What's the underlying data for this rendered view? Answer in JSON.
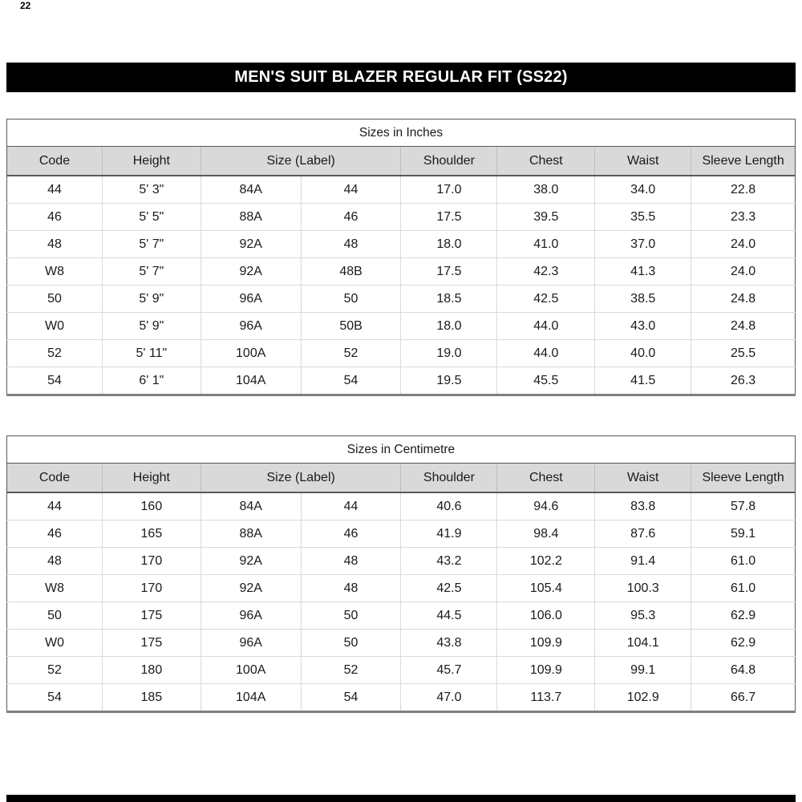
{
  "page": {
    "corner_mark": "22",
    "title_bar": "MEN'S SUIT BLAZER REGULAR FIT (SS22)"
  },
  "colors": {
    "title_bar_bg": "#000000",
    "title_bar_text": "#ffffff",
    "header_row_bg": "#d9d9d9",
    "grid_line": "#d9d9d9",
    "table_border": "#595959",
    "bottom_bar_bg": "#000000"
  },
  "column_widths_percent": [
    12.1,
    12.5,
    12.7,
    12.7,
    12.2,
    12.4,
    12.2,
    13.2
  ],
  "tables": [
    {
      "caption": "Sizes in Inches",
      "headers": [
        "Code",
        "Height",
        "Size (Label)",
        "Shoulder",
        "Chest",
        "Waist",
        "Sleeve Length"
      ],
      "header_spans": [
        1,
        1,
        2,
        1,
        1,
        1,
        1
      ],
      "rows": [
        [
          "44",
          "5' 3\"",
          "84A",
          "44",
          "17.0",
          "38.0",
          "34.0",
          "22.8"
        ],
        [
          "46",
          "5' 5\"",
          "88A",
          "46",
          "17.5",
          "39.5",
          "35.5",
          "23.3"
        ],
        [
          "48",
          "5' 7\"",
          "92A",
          "48",
          "18.0",
          "41.0",
          "37.0",
          "24.0"
        ],
        [
          "W8",
          "5' 7\"",
          "92A",
          "48B",
          "17.5",
          "42.3",
          "41.3",
          "24.0"
        ],
        [
          "50",
          "5' 9\"",
          "96A",
          "50",
          "18.5",
          "42.5",
          "38.5",
          "24.8"
        ],
        [
          "W0",
          "5' 9\"",
          "96A",
          "50B",
          "18.0",
          "44.0",
          "43.0",
          "24.8"
        ],
        [
          "52",
          "5' 11\"",
          "100A",
          "52",
          "19.0",
          "44.0",
          "40.0",
          "25.5"
        ],
        [
          "54",
          "6' 1\"",
          "104A",
          "54",
          "19.5",
          "45.5",
          "41.5",
          "26.3"
        ]
      ]
    },
    {
      "caption": "Sizes in Centimetre",
      "headers": [
        "Code",
        "Height",
        "Size (Label)",
        "Shoulder",
        "Chest",
        "Waist",
        "Sleeve Length"
      ],
      "header_spans": [
        1,
        1,
        2,
        1,
        1,
        1,
        1
      ],
      "rows": [
        [
          "44",
          "160",
          "84A",
          "44",
          "40.6",
          "94.6",
          "83.8",
          "57.8"
        ],
        [
          "46",
          "165",
          "88A",
          "46",
          "41.9",
          "98.4",
          "87.6",
          "59.1"
        ],
        [
          "48",
          "170",
          "92A",
          "48",
          "43.2",
          "102.2",
          "91.4",
          "61.0"
        ],
        [
          "W8",
          "170",
          "92A",
          "48",
          "42.5",
          "105.4",
          "100.3",
          "61.0"
        ],
        [
          "50",
          "175",
          "96A",
          "50",
          "44.5",
          "106.0",
          "95.3",
          "62.9"
        ],
        [
          "W0",
          "175",
          "96A",
          "50",
          "43.8",
          "109.9",
          "104.1",
          "62.9"
        ],
        [
          "52",
          "180",
          "100A",
          "52",
          "45.7",
          "109.9",
          "99.1",
          "64.8"
        ],
        [
          "54",
          "185",
          "104A",
          "54",
          "47.0",
          "113.7",
          "102.9",
          "66.7"
        ]
      ]
    }
  ]
}
